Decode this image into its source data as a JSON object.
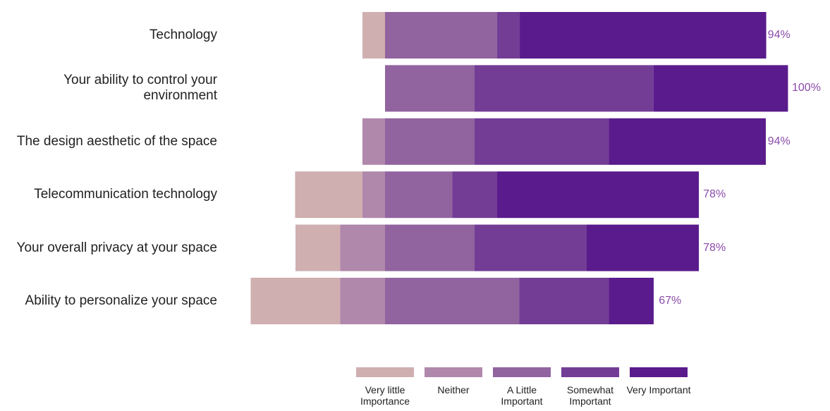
{
  "chart_data": {
    "type": "diverging-bar",
    "categories": [
      "Technology",
      "Your ability to control your environment",
      "The design aesthetic of the space",
      "Telecommunication technology",
      "Your overall privacy at your space",
      "Ability to personalize your space"
    ],
    "series": [
      {
        "name": "Very little Importance",
        "color": "#cfafb0",
        "side": "negative",
        "values": [
          5.6,
          0,
          0,
          16.7,
          11.1,
          22.2
        ]
      },
      {
        "name": "Neither",
        "color": "#b088ac",
        "side": "negative",
        "values": [
          0,
          0,
          5.6,
          5.6,
          11.1,
          11.1
        ]
      },
      {
        "name": "A Little Important",
        "color": "#9164a0",
        "side": "positive",
        "values": [
          27.8,
          22.2,
          22.2,
          16.7,
          22.2,
          33.3
        ]
      },
      {
        "name": "Somewhat Important",
        "color": "#733d96",
        "side": "positive",
        "values": [
          5.6,
          44.4,
          33.3,
          11.1,
          27.8,
          22.2
        ]
      },
      {
        "name": "Very Important",
        "color": "#5a1b8c",
        "side": "positive",
        "values": [
          61.1,
          33.3,
          38.9,
          50,
          27.8,
          11.1
        ]
      }
    ],
    "totals": {
      "values": [
        94,
        100,
        94,
        78,
        78,
        67
      ],
      "value_labels": [
        "94%",
        "100%",
        "94%",
        "78%",
        "78%",
        "67%"
      ]
    }
  }
}
